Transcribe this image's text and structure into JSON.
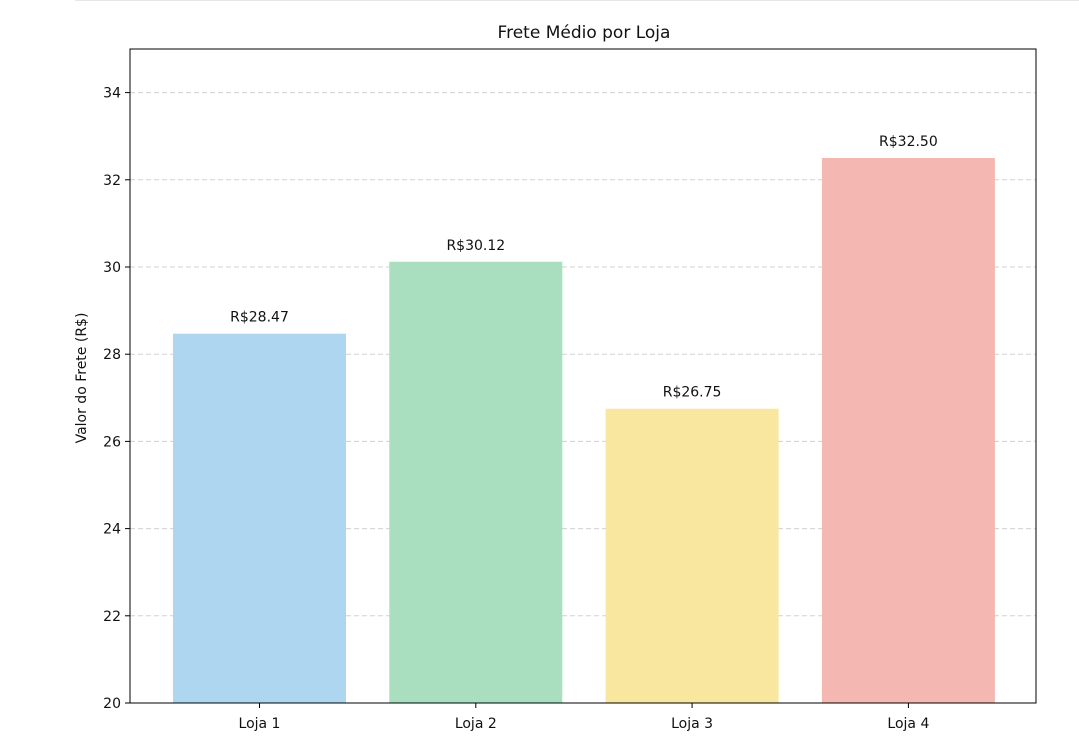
{
  "chart_data": {
    "type": "bar",
    "title": "Frete Médio por Loja",
    "xlabel": "",
    "ylabel": "Valor do Frete (R$)",
    "categories": [
      "Loja 1",
      "Loja 2",
      "Loja 3",
      "Loja 4"
    ],
    "values": [
      28.47,
      30.12,
      26.75,
      32.5
    ],
    "data_labels": [
      "R$28.47",
      "R$30.12",
      "R$26.75",
      "R$32.50"
    ],
    "colors": [
      "#aed6f1",
      "#a9dfbf",
      "#f9e79f",
      "#f5b7b1"
    ],
    "ylim": [
      20,
      35
    ],
    "yticks": [
      20,
      22,
      24,
      26,
      28,
      30,
      32,
      34
    ],
    "ytick_labels": [
      "20",
      "22",
      "24",
      "26",
      "28",
      "30",
      "32",
      "34"
    ],
    "grid": "y-dashed"
  }
}
